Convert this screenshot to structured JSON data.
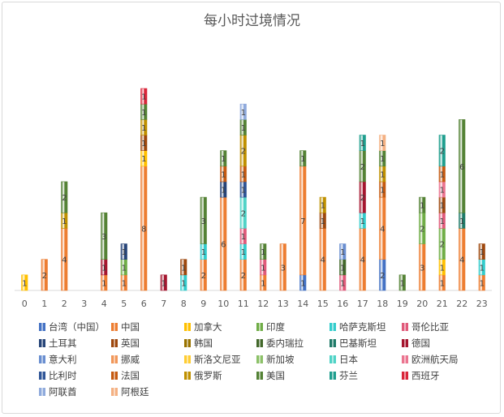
{
  "chart_data": {
    "type": "bar",
    "stacked": true,
    "title": "每小时过境情况",
    "xlabel": "",
    "ylabel": "",
    "ylim": [
      0,
      15
    ],
    "grid": false,
    "legend_position": "bottom",
    "categories": [
      "0",
      "1",
      "2",
      "3",
      "4",
      "5",
      "6",
      "7",
      "8",
      "9",
      "10",
      "11",
      "12",
      "13",
      "14",
      "15",
      "16",
      "17",
      "18",
      "19",
      "20",
      "21",
      "22",
      "23"
    ],
    "series": [
      {
        "name": "台湾（中国）",
        "color": "#4472c4",
        "values": [
          0,
          0,
          0,
          0,
          0,
          0,
          0,
          0,
          0,
          0,
          0,
          0,
          0,
          0,
          1,
          0,
          0,
          0,
          2,
          0,
          0,
          0,
          0,
          0
        ]
      },
      {
        "name": "中国",
        "color": "#ed7d31",
        "values": [
          0,
          2,
          4,
          0,
          1,
          1,
          8,
          0,
          0,
          2,
          6,
          2,
          1,
          3,
          7,
          4,
          0,
          4,
          4,
          0,
          3,
          1,
          4,
          1
        ]
      },
      {
        "name": "加拿大",
        "color": "#ffc000",
        "values": [
          1,
          0,
          0,
          0,
          0,
          0,
          1,
          0,
          0,
          0,
          0,
          0,
          0,
          0,
          0,
          0,
          0,
          0,
          0,
          0,
          0,
          1,
          0,
          0
        ]
      },
      {
        "name": "印度",
        "color": "#70ad47",
        "values": [
          0,
          0,
          0,
          0,
          0,
          1,
          0,
          0,
          0,
          0,
          0,
          0,
          0,
          0,
          0,
          0,
          0,
          0,
          0,
          0,
          2,
          2,
          0,
          0
        ]
      },
      {
        "name": "哈萨克斯坦",
        "color": "#33cccc",
        "values": [
          0,
          0,
          0,
          0,
          0,
          0,
          0,
          0,
          1,
          1,
          0,
          1,
          0,
          0,
          0,
          0,
          0,
          1,
          0,
          0,
          0,
          0,
          0,
          1
        ]
      },
      {
        "name": "哥伦比亚",
        "color": "#e05a7a",
        "values": [
          0,
          0,
          0,
          0,
          0,
          0,
          0,
          0,
          0,
          0,
          0,
          1,
          1,
          0,
          0,
          0,
          1,
          0,
          0,
          0,
          0,
          1,
          0,
          0
        ]
      },
      {
        "name": "土耳其",
        "color": "#264478",
        "values": [
          0,
          0,
          0,
          0,
          0,
          1,
          0,
          0,
          0,
          0,
          1,
          0,
          0,
          0,
          0,
          0,
          0,
          0,
          0,
          0,
          0,
          0,
          0,
          0
        ]
      },
      {
        "name": "英国",
        "color": "#9e480e",
        "values": [
          0,
          0,
          0,
          0,
          0,
          0,
          1,
          0,
          1,
          0,
          0,
          0,
          0,
          0,
          0,
          1,
          0,
          0,
          0,
          0,
          0,
          1,
          0,
          1
        ]
      },
      {
        "name": "韩国",
        "color": "#997300",
        "values": [
          0,
          0,
          0,
          0,
          0,
          0,
          0,
          0,
          0,
          0,
          0,
          0,
          0,
          0,
          0,
          0,
          0,
          0,
          0,
          0,
          0,
          0,
          0,
          0
        ]
      },
      {
        "name": "委内瑞拉",
        "color": "#43682b",
        "values": [
          0,
          0,
          0,
          0,
          0,
          0,
          0,
          0,
          0,
          0,
          0,
          0,
          0,
          0,
          0,
          0,
          1,
          0,
          0,
          0,
          0,
          0,
          0,
          0
        ]
      },
      {
        "name": "巴基斯坦",
        "color": "#1f7a68",
        "values": [
          0,
          0,
          0,
          0,
          0,
          0,
          0,
          0,
          0,
          0,
          0,
          0,
          0,
          0,
          0,
          0,
          0,
          0,
          0,
          0,
          0,
          0,
          1,
          0
        ]
      },
      {
        "name": "德国",
        "color": "#a5162f",
        "values": [
          0,
          0,
          0,
          0,
          1,
          0,
          0,
          1,
          0,
          0,
          0,
          0,
          0,
          0,
          0,
          0,
          0,
          2,
          0,
          0,
          0,
          0,
          0,
          0
        ]
      },
      {
        "name": "意大利",
        "color": "#698ed0",
        "values": [
          0,
          0,
          0,
          0,
          0,
          0,
          0,
          0,
          0,
          0,
          0,
          0,
          0,
          0,
          0,
          0,
          1,
          0,
          0,
          0,
          0,
          0,
          0,
          0
        ]
      },
      {
        "name": "挪威",
        "color": "#f1975a",
        "values": [
          0,
          0,
          0,
          0,
          0,
          0,
          0,
          0,
          0,
          0,
          0,
          0,
          0,
          0,
          0,
          0,
          0,
          0,
          0,
          0,
          0,
          0,
          0,
          0
        ]
      },
      {
        "name": "斯洛文尼亚",
        "color": "#ffcd33",
        "values": [
          0,
          0,
          0,
          0,
          0,
          0,
          0,
          0,
          0,
          0,
          0,
          0,
          0,
          0,
          0,
          0,
          0,
          0,
          0,
          0,
          0,
          0,
          0,
          0
        ]
      },
      {
        "name": "新加坡",
        "color": "#8cc168",
        "values": [
          0,
          0,
          0,
          0,
          0,
          0,
          0,
          0,
          0,
          0,
          0,
          0,
          0,
          0,
          0,
          0,
          0,
          0,
          0,
          0,
          0,
          0,
          0,
          0
        ]
      },
      {
        "name": "日本",
        "color": "#4fd3c6",
        "values": [
          0,
          0,
          0,
          0,
          0,
          0,
          0,
          0,
          0,
          0,
          0,
          2,
          0,
          0,
          0,
          0,
          0,
          0,
          0,
          0,
          0,
          0,
          0,
          0
        ]
      },
      {
        "name": "欧洲航天局",
        "color": "#eb7590",
        "values": [
          0,
          0,
          0,
          0,
          0,
          0,
          0,
          0,
          0,
          0,
          0,
          0,
          0,
          0,
          0,
          0,
          0,
          0,
          0,
          0,
          0,
          1,
          0,
          0
        ]
      },
      {
        "name": "比利时",
        "color": "#2f5597",
        "values": [
          0,
          0,
          0,
          0,
          0,
          0,
          0,
          0,
          0,
          0,
          0,
          1,
          0,
          0,
          0,
          0,
          0,
          0,
          0,
          0,
          0,
          0,
          0,
          0
        ]
      },
      {
        "name": "法国",
        "color": "#c55a11",
        "values": [
          0,
          0,
          0,
          0,
          0,
          0,
          0,
          0,
          0,
          0,
          1,
          1,
          0,
          0,
          0,
          0,
          0,
          0,
          1,
          0,
          0,
          1,
          0,
          0
        ]
      },
      {
        "name": "俄罗斯",
        "color": "#bf9000",
        "values": [
          0,
          0,
          1,
          0,
          0,
          0,
          1,
          0,
          0,
          0,
          0,
          2,
          0,
          0,
          0,
          1,
          0,
          0,
          1,
          0,
          0,
          0,
          0,
          0
        ]
      },
      {
        "name": "美国",
        "color": "#548235",
        "values": [
          0,
          0,
          2,
          0,
          3,
          0,
          1,
          0,
          0,
          3,
          1,
          1,
          1,
          0,
          1,
          0,
          0,
          2,
          1,
          1,
          1,
          0,
          6,
          0
        ]
      },
      {
        "name": "芬兰",
        "color": "#1f9e8e",
        "values": [
          0,
          0,
          0,
          0,
          0,
          0,
          0,
          0,
          0,
          0,
          0,
          0,
          0,
          0,
          0,
          0,
          0,
          1,
          0,
          0,
          0,
          2,
          0,
          0
        ]
      },
      {
        "name": "西班牙",
        "color": "#d9263a",
        "values": [
          0,
          0,
          0,
          0,
          0,
          0,
          1,
          0,
          0,
          0,
          0,
          0,
          0,
          0,
          0,
          0,
          0,
          0,
          0,
          0,
          0,
          0,
          0,
          0
        ]
      },
      {
        "name": "阿联酋",
        "color": "#8faadc",
        "values": [
          0,
          0,
          0,
          0,
          0,
          0,
          0,
          0,
          0,
          0,
          0,
          1,
          0,
          0,
          0,
          0,
          0,
          0,
          0,
          0,
          0,
          0,
          0,
          0
        ]
      },
      {
        "name": "阿根廷",
        "color": "#f4b183",
        "values": [
          0,
          0,
          0,
          0,
          0,
          0,
          0,
          0,
          0,
          0,
          0,
          0,
          0,
          0,
          0,
          0,
          0,
          0,
          1,
          0,
          0,
          0,
          0,
          0
        ]
      }
    ]
  }
}
